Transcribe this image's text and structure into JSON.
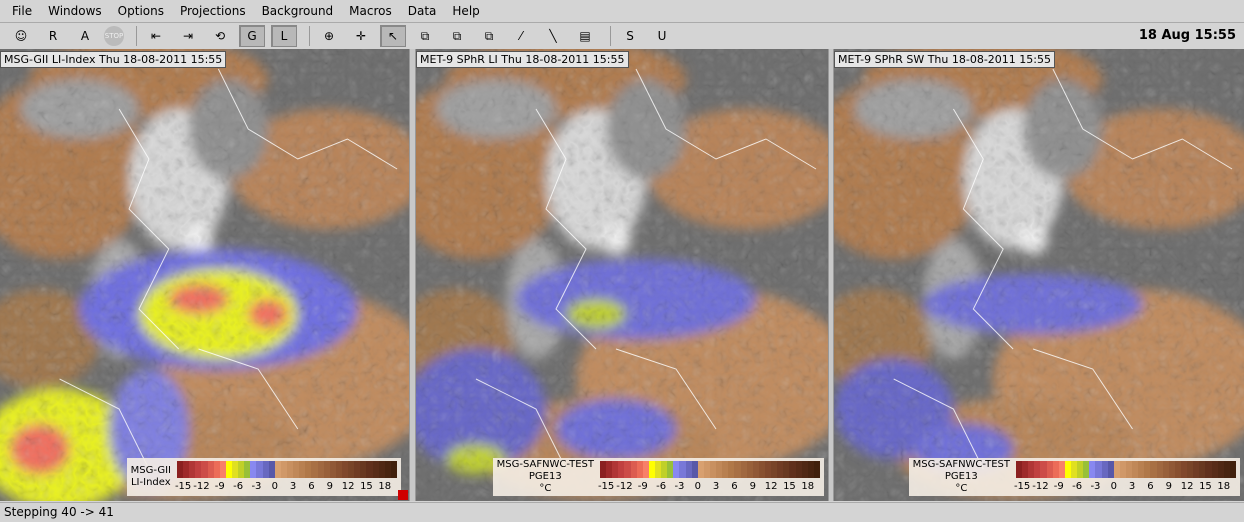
{
  "menu": [
    "File",
    "Windows",
    "Options",
    "Projections",
    "Background",
    "Macros",
    "Data",
    "Help"
  ],
  "toolbar": {
    "items": [
      {
        "name": "user-icon",
        "label": "☺"
      },
      {
        "name": "r-button",
        "label": "R"
      },
      {
        "name": "a-button",
        "label": "A"
      },
      {
        "name": "stop-button",
        "label": "STOP"
      },
      {
        "name": "step-back-button",
        "label": "⇤"
      },
      {
        "name": "step-forward-button",
        "label": "⇥"
      },
      {
        "name": "loop-button",
        "label": "⟲"
      },
      {
        "name": "g-button",
        "label": "G",
        "pressed": true
      },
      {
        "name": "l-button",
        "label": "L",
        "pressed": true
      },
      {
        "name": "zoom-button",
        "label": "⊕"
      },
      {
        "name": "pan-button",
        "label": "✛"
      },
      {
        "name": "pointer-button",
        "label": "↖",
        "pressed": true
      },
      {
        "name": "copy-window-button",
        "label": "⧉"
      },
      {
        "name": "move-window-button",
        "label": "⧉"
      },
      {
        "name": "overlap-window-button",
        "label": "⧉"
      },
      {
        "name": "distance-button",
        "label": "⁄"
      },
      {
        "name": "vsc-button",
        "label": "╲"
      },
      {
        "name": "table-button",
        "label": "▤"
      },
      {
        "name": "s-button",
        "label": "S"
      },
      {
        "name": "u-button",
        "label": "U"
      }
    ],
    "clock": "18 Aug 15:55"
  },
  "panels": [
    {
      "title": "MSG-GII LI-Index Thu 18-08-2011 15:55",
      "legend": [
        "MSG-GII",
        "LI-Index"
      ]
    },
    {
      "title": "MET-9 SPhR LI Thu 18-08-2011 15:55",
      "legend": [
        "MSG-SAFNWC-TEST",
        "PGE13",
        "°C"
      ]
    },
    {
      "title": "MET-9 SPhR SW Thu 18-08-2011 15:55",
      "legend": [
        "MSG-SAFNWC-TEST",
        "PGE13",
        "°C"
      ]
    }
  ],
  "colorbar": {
    "ticks": [
      "-15",
      "-12",
      "-9",
      "-6",
      "-3",
      "0",
      "3",
      "6",
      "9",
      "12",
      "15",
      "18"
    ],
    "range": [
      -16,
      20
    ],
    "colors": [
      "#8b2020",
      "#9e2a2a",
      "#b03636",
      "#c04040",
      "#cc4c48",
      "#dc5c50",
      "#ec6c58",
      "#f88068",
      "#ffff00",
      "#e0e020",
      "#c0d028",
      "#98c038",
      "#8888f0",
      "#7878d8",
      "#6868c0",
      "#5858a8",
      "#d8a070",
      "#d09868",
      "#c89060",
      "#c08858",
      "#b88050",
      "#b07848",
      "#a87044",
      "#a06840",
      "#98603a",
      "#905836",
      "#885030",
      "#80482c",
      "#784428",
      "#703c24",
      "#683820",
      "#60301c",
      "#582c18",
      "#502814",
      "#482410",
      "#40200c"
    ]
  },
  "status": "Stepping 40 -> 41"
}
